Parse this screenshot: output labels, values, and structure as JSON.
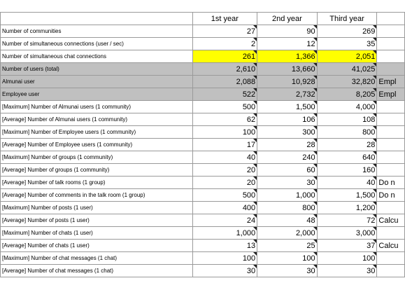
{
  "header": {
    "col1": "1st year",
    "col2": "2nd year",
    "col3": "Third year"
  },
  "rows": [
    {
      "label": "Number of communities",
      "y1": "27",
      "y2": "90",
      "y3": "269",
      "extra": ""
    },
    {
      "label": "Number of simultaneous connections (user / sec)",
      "y1": "2",
      "y2": "12",
      "y3": "35",
      "extra": ""
    },
    {
      "label": "Number of simultaneous chat connections",
      "y1": "261",
      "y2": "1,366",
      "y3": "2,051",
      "extra": ""
    },
    {
      "label": "Number of users (total)",
      "y1": "2,610",
      "y2": "13,660",
      "y3": "41,025",
      "extra": ""
    },
    {
      "label": "Almunai user",
      "y1": "2,088",
      "y2": "10,928",
      "y3": "32,820",
      "extra": "Empl"
    },
    {
      "label": "Employee user",
      "y1": "522",
      "y2": "2,732",
      "y3": "8,205",
      "extra": "Empl"
    },
    {
      "label": "[Maximum] Number of Almunai users (1 community)",
      "y1": "500",
      "y2": "1,500",
      "y3": "4,000",
      "extra": ""
    },
    {
      "label": "[Average] Number of Almunai users (1 community)",
      "y1": "62",
      "y2": "106",
      "y3": "108",
      "extra": ""
    },
    {
      "label": "[Maximum] Number of Employee users (1 community)",
      "y1": "100",
      "y2": "300",
      "y3": "800",
      "extra": ""
    },
    {
      "label": "[Average] Number of Employee users (1 community)",
      "y1": "17",
      "y2": "28",
      "y3": "28",
      "extra": ""
    },
    {
      "label": "[Maximum] Number of groups (1 community)",
      "y1": "40",
      "y2": "240",
      "y3": "640",
      "extra": ""
    },
    {
      "label": "[Average] Number of groups (1 community)",
      "y1": "20",
      "y2": "60",
      "y3": "160",
      "extra": ""
    },
    {
      "label": "[Average] Number of talk rooms (1 group)",
      "y1": "20",
      "y2": "30",
      "y3": "40",
      "extra": "Do n"
    },
    {
      "label": "[Average] Number of comments in the talk room (1 group)",
      "y1": "500",
      "y2": "1,000",
      "y3": "1,500",
      "extra": "Do n"
    },
    {
      "label": "[Maximum] Number of posts (1 user)",
      "y1": "400",
      "y2": "800",
      "y3": "1,200",
      "extra": ""
    },
    {
      "label": "[Average] Number of posts (1 user)",
      "y1": "24",
      "y2": "48",
      "y3": "72",
      "extra": "Calcu"
    },
    {
      "label": "[Maximum] Number of chats (1 user)",
      "y1": "1,000",
      "y2": "2,000",
      "y3": "3,000",
      "extra": ""
    },
    {
      "label": "[Average] Number of chats (1 user)",
      "y1": "13",
      "y2": "25",
      "y3": "37",
      "extra": "Calcu"
    },
    {
      "label": "[Maximum] Number of chat messages (1 chat)",
      "y1": "100",
      "y2": "100",
      "y3": "100",
      "extra": ""
    },
    {
      "label": "[Average] Number of chat messages (1 chat)",
      "y1": "30",
      "y2": "30",
      "y3": "30",
      "extra": ""
    }
  ],
  "colors": {
    "highlight": "#ffff00",
    "gray_row": "#c0c0c0"
  }
}
